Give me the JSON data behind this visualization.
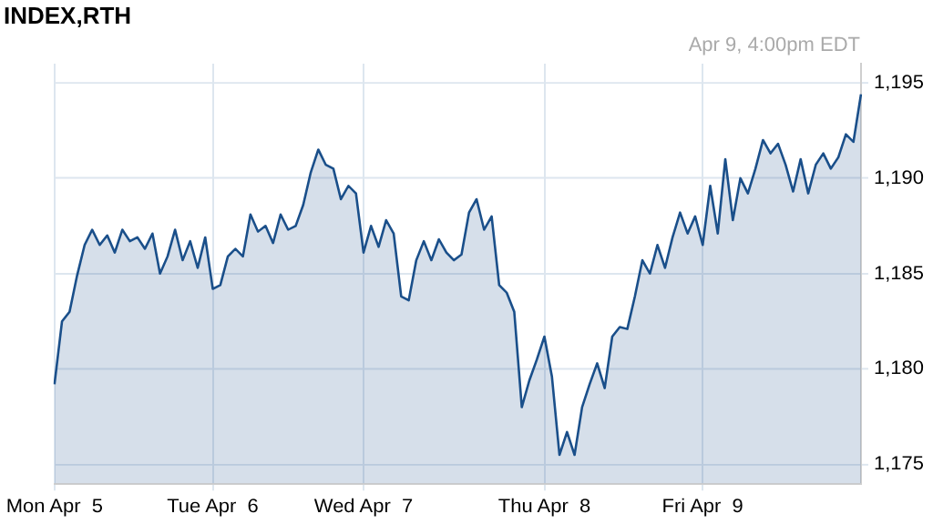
{
  "chart_data": {
    "type": "area",
    "title": "INDEX,RTH",
    "annotations": [
      "Apr 9, 4:00pm EDT"
    ],
    "categories": [
      "Mon Apr  5",
      null,
      null,
      null,
      null,
      null,
      null,
      null,
      null,
      null,
      null,
      null,
      null,
      null,
      null,
      null,
      null,
      null,
      null,
      null,
      null,
      "Tue Apr  6",
      null,
      null,
      null,
      null,
      null,
      null,
      null,
      null,
      null,
      null,
      null,
      null,
      null,
      null,
      null,
      null,
      null,
      null,
      null,
      "Wed Apr  7",
      null,
      null,
      null,
      null,
      null,
      null,
      null,
      null,
      null,
      null,
      null,
      null,
      null,
      null,
      null,
      null,
      null,
      null,
      null,
      null,
      null,
      null,
      null,
      "Thu Apr  8",
      null,
      null,
      null,
      null,
      null,
      null,
      null,
      null,
      null,
      null,
      null,
      null,
      null,
      null,
      null,
      null,
      null,
      null,
      null,
      null,
      "Fri Apr  9",
      null,
      null,
      null,
      null,
      null,
      null,
      null,
      null,
      null,
      null,
      null,
      null,
      null,
      null,
      null,
      null,
      null,
      null,
      null,
      null,
      null
    ],
    "series": [
      {
        "color": "#1a4f8a",
        "values": [
          1179.2,
          1182.5,
          1183.0,
          1184.9,
          1186.5,
          1187.3,
          1186.5,
          1187.0,
          1186.1,
          1187.3,
          1186.7,
          1186.9,
          1186.3,
          1187.1,
          1185.0,
          1185.9,
          1187.3,
          1185.7,
          1186.7,
          1185.3,
          1186.9,
          1184.2,
          1184.4,
          1185.9,
          1186.3,
          1185.9,
          1188.1,
          1187.2,
          1187.5,
          1186.6,
          1188.1,
          1187.3,
          1187.5,
          1188.6,
          1190.3,
          1191.5,
          1190.7,
          1190.5,
          1188.9,
          1189.6,
          1189.2,
          1186.1,
          1187.5,
          1186.4,
          1187.8,
          1187.1,
          1183.8,
          1183.6,
          1185.7,
          1186.7,
          1185.7,
          1186.8,
          1186.1,
          1185.7,
          1186.0,
          1188.2,
          1188.9,
          1187.3,
          1188.0,
          1184.4,
          1184.0,
          1183.0,
          1178.0,
          1179.4,
          1180.5,
          1181.7,
          1179.6,
          1175.5,
          1176.7,
          1175.5,
          1178.0,
          1179.2,
          1180.3,
          1179.0,
          1181.7,
          1182.2,
          1182.1,
          1183.8,
          1185.7,
          1185.0,
          1186.5,
          1185.3,
          1186.9,
          1188.2,
          1187.1,
          1188.0,
          1186.5,
          1189.6,
          1187.1,
          1191.0,
          1187.8,
          1190.0,
          1189.2,
          1190.5,
          1192.0,
          1191.3,
          1191.8,
          1190.7,
          1189.3,
          1191.0,
          1189.2,
          1190.7,
          1191.3,
          1190.5,
          1191.1,
          1192.3,
          1191.9,
          1194.4
        ]
      }
    ],
    "ylim": [
      1174,
      1196
    ],
    "yticks": [
      {
        "value": 1175,
        "label": "1,175"
      },
      {
        "value": 1180,
        "label": "1,180"
      },
      {
        "value": 1185,
        "label": "1,185"
      },
      {
        "value": 1190,
        "label": "1,190"
      },
      {
        "value": 1195,
        "label": "1,195"
      }
    ],
    "grid": true,
    "legend": false,
    "marker": "none",
    "line_style": "solid"
  }
}
